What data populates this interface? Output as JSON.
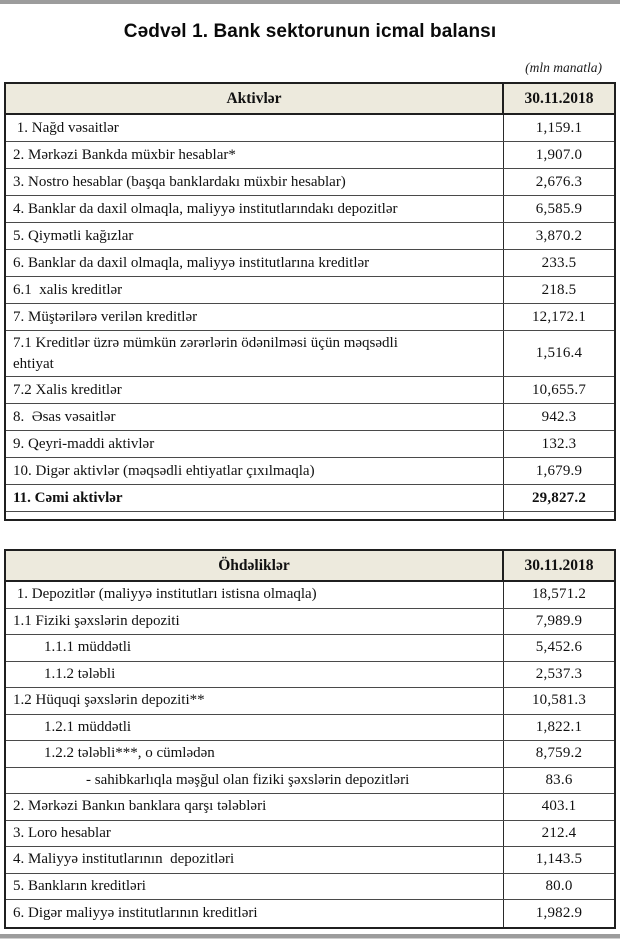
{
  "page": {
    "title": "Cədvəl 1. Bank sektorunun icmal balansı",
    "unit_note": "(mln manatla)"
  },
  "tables": [
    {
      "id": "assets",
      "header": {
        "label": "Aktivlər",
        "date": "30.11.2018"
      },
      "rows": [
        {
          "label": " 1. Nağd vəsaitlər",
          "value": "1,159.1"
        },
        {
          "label": "2. Mərkəzi Bankda müxbir hesablar*",
          "value": "1,907.0"
        },
        {
          "label": "3. Nostro hesablar (başqa banklardakı müxbir hesablar)",
          "value": "2,676.3"
        },
        {
          "label": "4. Banklar da daxil olmaqla, maliyyə institutlarındakı depozitlər",
          "value": "6,585.9"
        },
        {
          "label": "5. Qiymətli kağızlar",
          "value": "3,870.2"
        },
        {
          "label": "6. Banklar da daxil olmaqla, maliyyə institutlarına kreditlər",
          "value": "233.5"
        },
        {
          "label": "6.1  xalis kreditlər",
          "value": "218.5"
        },
        {
          "label": "7. Müştərilərə verilən kreditlər",
          "value": "12,172.1"
        },
        {
          "label": "7.1 Kreditlər üzrə mümkün zərərlərin ödənilməsi üçün məqsədli\nehtiyat",
          "value": "1,516.4",
          "tall": true
        },
        {
          "label": "7.2 Xalis kreditlər",
          "value": "10,655.7"
        },
        {
          "label": "8.  Əsas vəsaitlər",
          "value": "942.3"
        },
        {
          "label": "9. Qeyri-maddi aktivlər",
          "value": "132.3"
        },
        {
          "label": "10. Digər aktivlər (məqsədli ehtiyatlar çıxılmaqla)",
          "value": "1,679.9"
        },
        {
          "label": "11. Cəmi aktivlər",
          "value": "29,827.2",
          "bold": true
        },
        {
          "empty": true
        }
      ]
    },
    {
      "id": "liabilities",
      "header": {
        "label": "Öhdəliklər",
        "date": "30.11.2018"
      },
      "rows": [
        {
          "label": " 1. Depozitlər (maliyyə institutları istisna olmaqla)",
          "value": "18,571.2"
        },
        {
          "label": "1.1 Fiziki şəxslərin depoziti",
          "value": "7,989.9"
        },
        {
          "label": "1.1.1 müddətli",
          "value": "5,452.6",
          "indent": 1
        },
        {
          "label": "1.1.2 tələbli",
          "value": "2,537.3",
          "indent": 1
        },
        {
          "label": "1.2 Hüquqi şəxslərin depoziti**",
          "value": "10,581.3"
        },
        {
          "label": "1.2.1 müddətli",
          "value": "1,822.1",
          "indent": 1
        },
        {
          "label": "1.2.2 tələbli***, o cümlədən",
          "value": "8,759.2",
          "indent": 1
        },
        {
          "label": "- sahibkarlıqla məşğul olan fiziki şəxslərin depozitləri",
          "value": "83.6",
          "indent": 2
        },
        {
          "label": "2. Mərkəzi Bankın banklara qarşı tələbləri",
          "value": "403.1"
        },
        {
          "label": "3. Loro hesablar",
          "value": "212.4"
        },
        {
          "label": "4. Maliyyə institutlarının  depozitləri",
          "value": "1,143.5"
        },
        {
          "label": "5. Bankların kreditləri",
          "value": "80.0"
        },
        {
          "label": "6. Digər maliyyə institutlarının kreditləri",
          "value": "1,982.9"
        }
      ]
    }
  ]
}
